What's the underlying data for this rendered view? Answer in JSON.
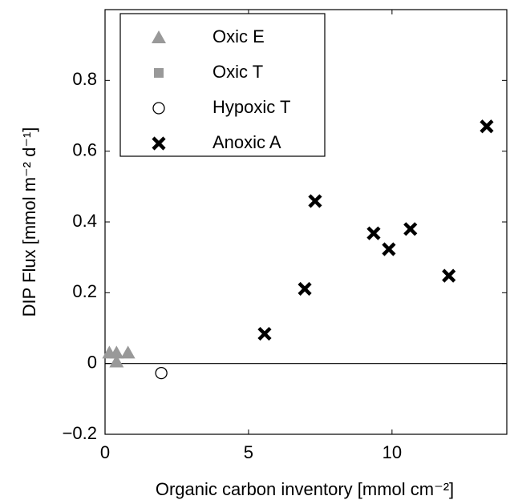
{
  "chart_data": {
    "type": "scatter",
    "xlabel": "Organic carbon inventory [mmol cm⁻²]",
    "ylabel": "DIP Flux [mmol m⁻² d⁻¹]",
    "xlim": [
      0,
      14
    ],
    "ylim": [
      -0.2,
      1.0
    ],
    "xticks": [
      0,
      5,
      10
    ],
    "yticks": [
      {
        "value": -0.2,
        "label": "−0.2"
      },
      0,
      0.2,
      0.4,
      0.6,
      0.8
    ],
    "legend": "upper left",
    "series": [
      {
        "name": "Oxic E",
        "color": "#999999",
        "marker": "triangle",
        "x": [
          0.15,
          0.4,
          0.8,
          0.4
        ],
        "values": [
          0.03,
          0.03,
          0.03,
          0.005
        ]
      },
      {
        "name": "Oxic T",
        "color": "#999999",
        "marker": "square",
        "x": [],
        "values": []
      },
      {
        "name": "Hypoxic T",
        "color": "#000000",
        "marker": "circle",
        "x": [
          1.96
        ],
        "values": [
          -0.027
        ]
      },
      {
        "name": "Anoxic A",
        "color": "#000000",
        "marker": "x",
        "x": [
          5.56,
          6.96,
          7.32,
          9.36,
          9.89,
          10.64,
          11.98,
          13.3
        ],
        "values": [
          0.084,
          0.211,
          0.459,
          0.368,
          0.323,
          0.38,
          0.248,
          0.67
        ]
      }
    ]
  }
}
